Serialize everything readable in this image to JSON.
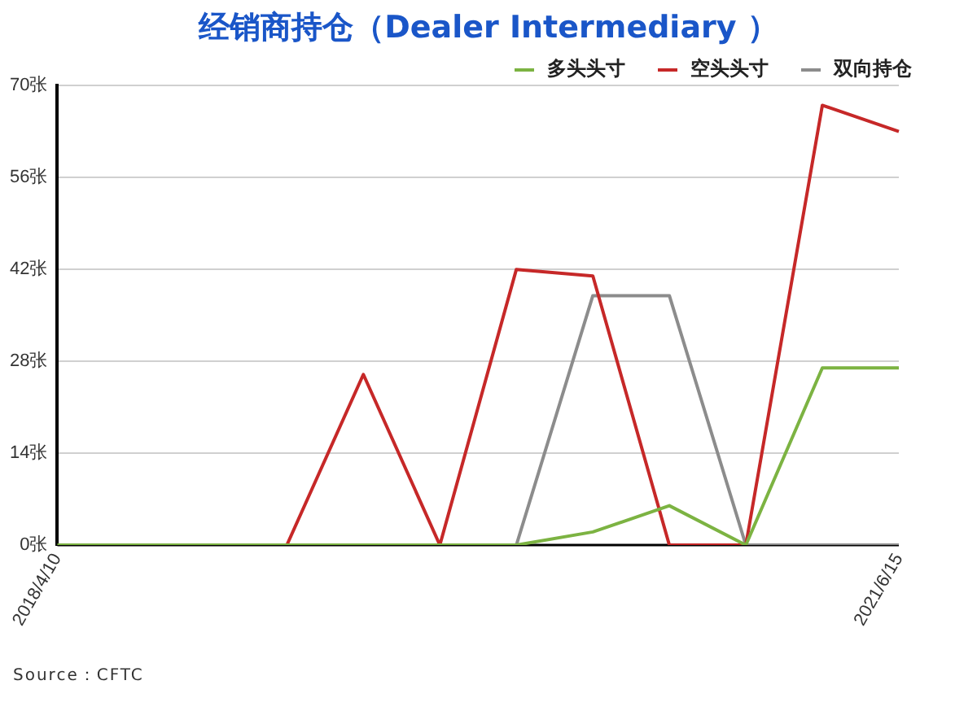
{
  "chart_data": {
    "type": "line",
    "title": "经销商持仓（Dealer Intermediary ）",
    "categories": [
      "2018/4/10",
      null,
      null,
      null,
      null,
      null,
      null,
      null,
      null,
      null,
      null,
      "2021/6/15"
    ],
    "series": [
      {
        "name": "多头头寸",
        "color": "#7cb342",
        "values": [
          0,
          0,
          0,
          0,
          0,
          0,
          0,
          2,
          6,
          0,
          27,
          27
        ]
      },
      {
        "name": "空头头寸",
        "color": "#c62828",
        "values": [
          null,
          null,
          null,
          0,
          26,
          0,
          42,
          41,
          0,
          0,
          67,
          63
        ]
      },
      {
        "name": "双向持仓",
        "color": "#8c8c8c",
        "values": [
          null,
          null,
          null,
          null,
          null,
          null,
          0,
          38,
          38,
          0,
          0,
          0
        ]
      }
    ],
    "ylim": [
      0,
      70
    ],
    "yticks": [
      {
        "value": 0,
        "label": "0张"
      },
      {
        "value": 14,
        "label": "14张"
      },
      {
        "value": 28,
        "label": "28张"
      },
      {
        "value": 42,
        "label": "42张"
      },
      {
        "value": 56,
        "label": "56张"
      },
      {
        "value": 70,
        "label": "70张"
      }
    ],
    "grid": "y",
    "legend": "top right",
    "marker": "none",
    "line_style": "solid",
    "annotations": [
      "Source：CFTC"
    ]
  }
}
